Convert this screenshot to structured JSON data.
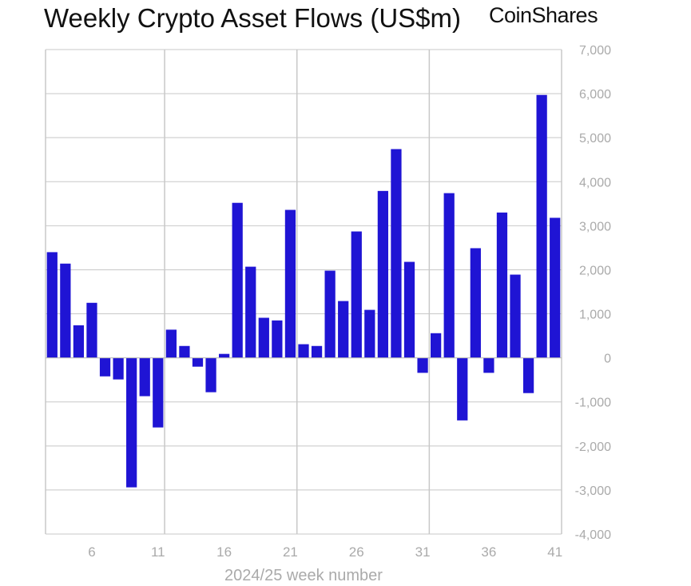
{
  "header": {
    "title": "Weekly Crypto Asset Flows (US$m)",
    "logo": "CoinShares"
  },
  "chart_data": {
    "type": "bar",
    "title": "Weekly Crypto Asset Flows (US$m)",
    "xlabel": "2024/25 week number",
    "ylabel": "",
    "ylim": [
      -4000,
      7000
    ],
    "yticks": [
      -4000,
      -3000,
      -2000,
      -1000,
      0,
      1000,
      2000,
      3000,
      4000,
      5000,
      6000,
      7000
    ],
    "ytick_labels": [
      "-4,000",
      "-3,000",
      "-2,000",
      "-1,000",
      "0",
      "1,000",
      "2,000",
      "3,000",
      "4,000",
      "5,000",
      "6,000",
      "7,000"
    ],
    "xticks": [
      6,
      11,
      16,
      21,
      26,
      31,
      36,
      41
    ],
    "xtick_labels": [
      "6",
      "11",
      "16",
      "21",
      "26",
      "31",
      "36",
      "41"
    ],
    "categories": [
      3,
      4,
      5,
      6,
      7,
      8,
      9,
      10,
      11,
      12,
      13,
      14,
      15,
      16,
      17,
      18,
      19,
      20,
      21,
      22,
      23,
      24,
      25,
      26,
      27,
      28,
      29,
      30,
      31,
      32,
      33,
      34,
      35,
      36,
      37,
      38,
      39,
      40,
      41
    ],
    "values": [
      2400,
      2140,
      740,
      1250,
      -420,
      -490,
      -2940,
      -870,
      -1580,
      640,
      270,
      -200,
      -780,
      90,
      3520,
      2070,
      910,
      850,
      3360,
      310,
      270,
      1980,
      1290,
      2870,
      1090,
      3790,
      4740,
      2180,
      -340,
      560,
      3740,
      -1420,
      2490,
      -340,
      3300,
      1890,
      -800,
      5970,
      3180
    ],
    "color": "#1f14d4",
    "grid": true,
    "legend": "none"
  }
}
